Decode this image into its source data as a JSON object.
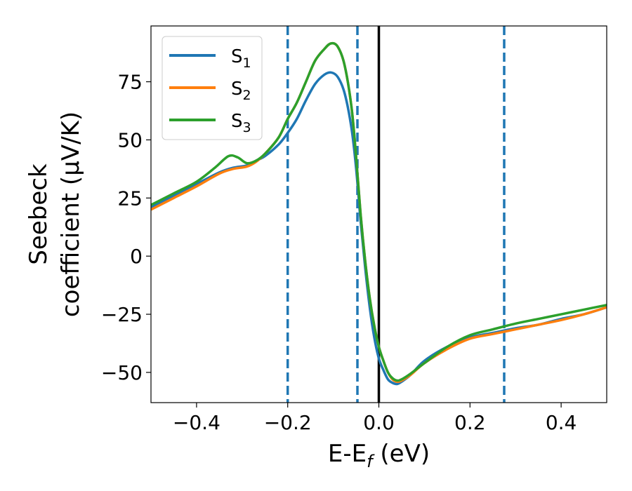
{
  "chart_data": {
    "type": "line",
    "xlabel": "E-E",
    "xlabel_sub": "f",
    "xlabel_unit": " (eV)",
    "ylabel_line1": "Seebeck",
    "ylabel_line2": "coefficient  (μV/K)",
    "xlim": [
      -0.5,
      0.5
    ],
    "ylim": [
      -63,
      99
    ],
    "xticks": [
      -0.4,
      -0.2,
      0.0,
      0.2,
      0.4
    ],
    "xtick_labels": [
      "−0.4",
      "−0.2",
      "0.0",
      "0.2",
      "0.4"
    ],
    "yticks": [
      -50,
      -25,
      0,
      25,
      50,
      75
    ],
    "ytick_labels": [
      "−50",
      "−25",
      "0",
      "25",
      "50",
      "75"
    ],
    "vlines": [
      {
        "x": -0.2,
        "style": "dashed",
        "color": "#1f77b4"
      },
      {
        "x": -0.047,
        "style": "dashed",
        "color": "#1f77b4"
      },
      {
        "x": 0.275,
        "style": "dashed",
        "color": "#1f77b4"
      },
      {
        "x": 0.0,
        "style": "solid",
        "color": "#000000"
      }
    ],
    "legend_position": "top-left",
    "series": [
      {
        "name": "S",
        "sub": "1",
        "color": "#1f77b4",
        "points": [
          [
            -0.5,
            21
          ],
          [
            -0.45,
            26
          ],
          [
            -0.4,
            31
          ],
          [
            -0.35,
            36
          ],
          [
            -0.32,
            38
          ],
          [
            -0.29,
            39
          ],
          [
            -0.27,
            41
          ],
          [
            -0.25,
            43
          ],
          [
            -0.22,
            48
          ],
          [
            -0.2,
            53
          ],
          [
            -0.18,
            59
          ],
          [
            -0.16,
            67
          ],
          [
            -0.14,
            74
          ],
          [
            -0.12,
            78
          ],
          [
            -0.105,
            79
          ],
          [
            -0.09,
            77
          ],
          [
            -0.075,
            70
          ],
          [
            -0.06,
            55
          ],
          [
            -0.05,
            38
          ],
          [
            -0.04,
            15
          ],
          [
            -0.03,
            -5
          ],
          [
            -0.02,
            -22
          ],
          [
            -0.01,
            -35
          ],
          [
            0.0,
            -44
          ],
          [
            0.01,
            -49
          ],
          [
            0.02,
            -53
          ],
          [
            0.03,
            -54.5
          ],
          [
            0.04,
            -55
          ],
          [
            0.05,
            -54
          ],
          [
            0.07,
            -51
          ],
          [
            0.1,
            -45
          ],
          [
            0.15,
            -39
          ],
          [
            0.2,
            -35
          ],
          [
            0.25,
            -33
          ],
          [
            0.3,
            -31
          ],
          [
            0.35,
            -29.5
          ],
          [
            0.4,
            -27
          ],
          [
            0.45,
            -25
          ],
          [
            0.5,
            -22
          ]
        ]
      },
      {
        "name": "S",
        "sub": "2",
        "color": "#ff7f0e",
        "points": [
          [
            -0.5,
            20
          ],
          [
            -0.45,
            25
          ],
          [
            -0.4,
            30
          ],
          [
            -0.35,
            35.5
          ],
          [
            -0.32,
            37.5
          ],
          [
            -0.29,
            38.5
          ],
          [
            -0.27,
            40.5
          ],
          [
            -0.25,
            44
          ],
          [
            -0.22,
            51
          ],
          [
            -0.2,
            59
          ],
          [
            -0.18,
            66
          ],
          [
            -0.16,
            75
          ],
          [
            -0.14,
            84
          ],
          [
            -0.12,
            89
          ],
          [
            -0.105,
            91.5
          ],
          [
            -0.09,
            90
          ],
          [
            -0.075,
            82
          ],
          [
            -0.06,
            64
          ],
          [
            -0.05,
            43
          ],
          [
            -0.04,
            18
          ],
          [
            -0.03,
            -2
          ],
          [
            -0.02,
            -18
          ],
          [
            -0.01,
            -30
          ],
          [
            0.0,
            -39
          ],
          [
            0.01,
            -45
          ],
          [
            0.02,
            -50
          ],
          [
            0.03,
            -53
          ],
          [
            0.04,
            -54
          ],
          [
            0.05,
            -53.5
          ],
          [
            0.07,
            -51
          ],
          [
            0.1,
            -46
          ],
          [
            0.15,
            -40
          ],
          [
            0.2,
            -35.5
          ],
          [
            0.25,
            -33.5
          ],
          [
            0.3,
            -31.5
          ],
          [
            0.35,
            -29.5
          ],
          [
            0.4,
            -27.5
          ],
          [
            0.45,
            -25
          ],
          [
            0.5,
            -22
          ]
        ]
      },
      {
        "name": "S",
        "sub": "3",
        "color": "#2ca02c",
        "points": [
          [
            -0.5,
            22
          ],
          [
            -0.45,
            27
          ],
          [
            -0.4,
            32
          ],
          [
            -0.36,
            38
          ],
          [
            -0.33,
            43
          ],
          [
            -0.31,
            42.5
          ],
          [
            -0.29,
            40
          ],
          [
            -0.27,
            41
          ],
          [
            -0.25,
            44
          ],
          [
            -0.22,
            51
          ],
          [
            -0.2,
            59
          ],
          [
            -0.18,
            66
          ],
          [
            -0.16,
            75
          ],
          [
            -0.14,
            84
          ],
          [
            -0.12,
            89
          ],
          [
            -0.105,
            91.5
          ],
          [
            -0.09,
            90
          ],
          [
            -0.075,
            82
          ],
          [
            -0.06,
            64
          ],
          [
            -0.05,
            43
          ],
          [
            -0.04,
            18
          ],
          [
            -0.03,
            -2
          ],
          [
            -0.02,
            -18
          ],
          [
            -0.01,
            -30
          ],
          [
            0.0,
            -39
          ],
          [
            0.01,
            -45
          ],
          [
            0.02,
            -50
          ],
          [
            0.03,
            -52.5
          ],
          [
            0.04,
            -53.5
          ],
          [
            0.05,
            -53
          ],
          [
            0.07,
            -50.5
          ],
          [
            0.1,
            -46
          ],
          [
            0.15,
            -39
          ],
          [
            0.2,
            -34
          ],
          [
            0.25,
            -31.5
          ],
          [
            0.3,
            -29
          ],
          [
            0.35,
            -27
          ],
          [
            0.4,
            -25
          ],
          [
            0.45,
            -23
          ],
          [
            0.5,
            -21
          ]
        ]
      }
    ]
  }
}
